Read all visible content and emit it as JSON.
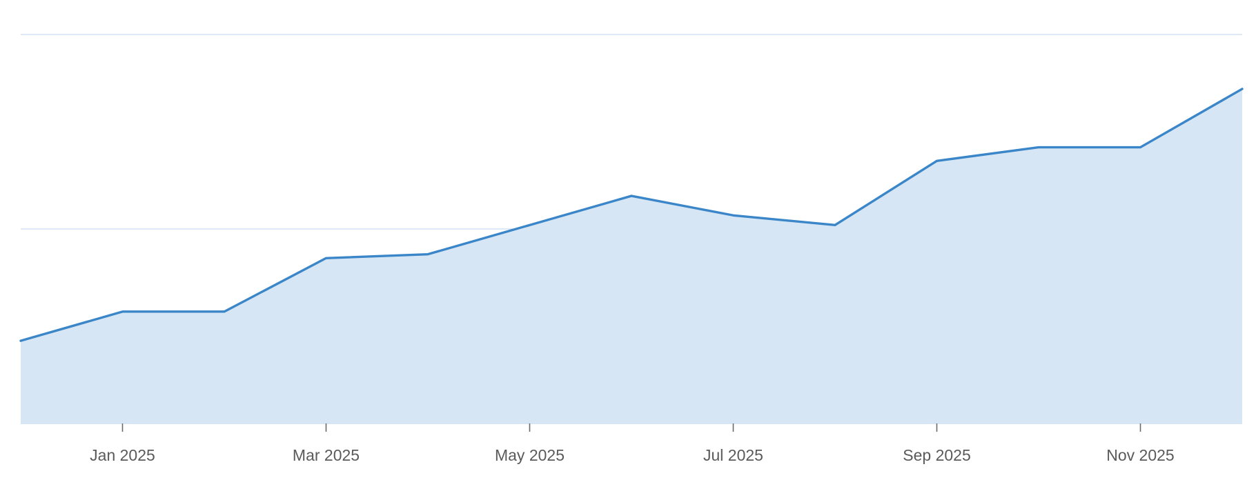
{
  "chart_data": {
    "type": "area",
    "title": "",
    "xlabel": "",
    "ylabel": "",
    "x": [
      "2024-12-01",
      "2025-01-01",
      "2025-02-01",
      "2025-03-01",
      "2025-04-01",
      "2025-05-01",
      "2025-06-01",
      "2025-07-01",
      "2025-08-01",
      "2025-09-01",
      "2025-10-01",
      "2025-11-01",
      "2025-12-01"
    ],
    "series": [
      {
        "values": [
          42.5,
          57.5,
          57.5,
          85,
          87,
          102,
          117,
          107,
          102,
          135,
          142,
          142,
          172
        ]
      }
    ],
    "ylim": [
      0,
      200
    ],
    "y_gridlines": [
      0,
      100,
      200
    ],
    "y_tick_labels_shown": false,
    "x_ticks": [
      {
        "x": "2025-01-01",
        "label": "Jan 2025"
      },
      {
        "x": "2025-03-01",
        "label": "Mar 2025"
      },
      {
        "x": "2025-05-01",
        "label": "May 2025"
      },
      {
        "x": "2025-07-01",
        "label": "Jul 2025"
      },
      {
        "x": "2025-09-01",
        "label": "Sep 2025"
      },
      {
        "x": "2025-11-01",
        "label": "Nov 2025"
      }
    ],
    "grid": true,
    "legend": "none",
    "colors": {
      "line": "#3a86c8",
      "fill": "#d6e6f5",
      "grid": "#c9dcf0"
    }
  }
}
